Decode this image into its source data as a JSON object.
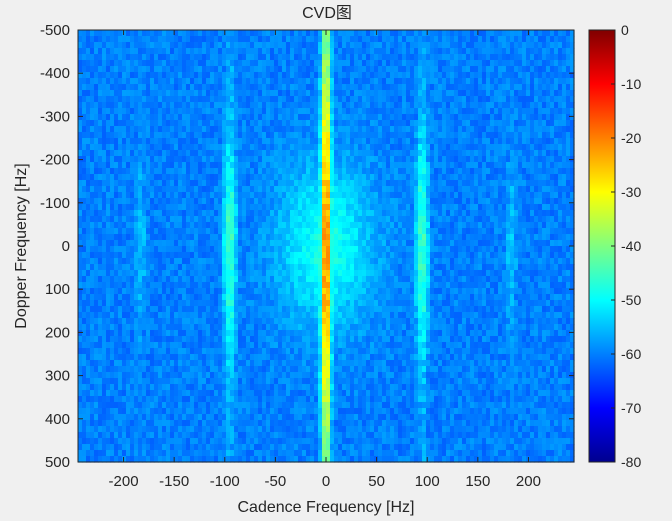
{
  "chart_data": {
    "type": "heatmap",
    "title": "CVD图",
    "xlabel": "Cadence Frequency [Hz]",
    "ylabel": "Dopper Frequency [Hz]",
    "xlim": [
      -245,
      245
    ],
    "ylim": [
      -500,
      500
    ],
    "y_direction": "reversed",
    "x_ticks": [
      -200,
      -150,
      -100,
      -50,
      0,
      50,
      100,
      150,
      200
    ],
    "y_ticks": [
      -500,
      -400,
      -300,
      -200,
      -100,
      0,
      100,
      200,
      300,
      400,
      500
    ],
    "colorbar": {
      "colormap": "jet",
      "range": [
        -80,
        0
      ],
      "ticks": [
        0,
        -10,
        -20,
        -30,
        -40,
        -50,
        -60,
        -70,
        -80
      ]
    },
    "grid": false,
    "features": [
      {
        "x": 0,
        "peak": -18
      },
      {
        "x": -95,
        "peak": -45
      },
      {
        "x": 95,
        "peak": -45
      },
      {
        "x": -183,
        "peak": -55
      },
      {
        "x": 183,
        "peak": -55
      }
    ],
    "background_level": -68
  }
}
